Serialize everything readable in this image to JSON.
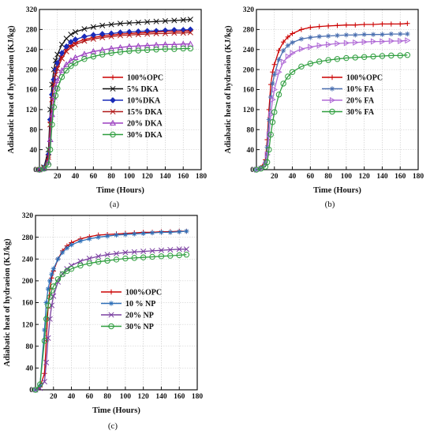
{
  "chart_data": [
    {
      "type": "line",
      "panel_label": "(a)",
      "xlabel": "Time (Hours)",
      "ylabel": "Adiabatic heat of hydraeion (KJ/kg)",
      "xlim": [
        0,
        180
      ],
      "ylim": [
        0,
        320
      ],
      "xticks": [
        20,
        40,
        60,
        80,
        100,
        120,
        140,
        160,
        180
      ],
      "yticks": [
        0,
        40,
        80,
        120,
        160,
        200,
        240,
        280,
        320
      ],
      "grid": true,
      "legend_position": "center-right",
      "x": [
        0,
        5,
        10,
        12,
        14,
        16,
        18,
        20,
        25,
        30,
        35,
        40,
        50,
        60,
        70,
        80,
        90,
        100,
        110,
        120,
        130,
        140,
        150,
        160,
        168
      ],
      "series": [
        {
          "name": "100%OPC",
          "color": "#cc0000",
          "marker": "plus",
          "values": [
            0,
            3,
            25,
            95,
            150,
            180,
            198,
            210,
            228,
            240,
            248,
            254,
            260,
            264,
            267,
            269,
            271,
            272,
            273,
            274,
            275,
            276,
            276,
            277,
            277
          ]
        },
        {
          "name": "5% DKA",
          "color": "#111111",
          "marker": "x",
          "values": [
            0,
            5,
            40,
            120,
            170,
            200,
            218,
            230,
            250,
            262,
            270,
            275,
            281,
            285,
            288,
            290,
            292,
            293,
            294,
            295,
            296,
            297,
            298,
            299,
            300
          ]
        },
        {
          "name": "10%DKA",
          "color": "#1a2bb8",
          "marker": "diamond",
          "values": [
            0,
            4,
            30,
            100,
            150,
            180,
            200,
            213,
            233,
            246,
            255,
            260,
            266,
            269,
            271,
            272,
            274,
            275,
            276,
            277,
            277,
            278,
            279,
            279,
            280
          ]
        },
        {
          "name": "15% DKA",
          "color": "#b01818",
          "marker": "x",
          "values": [
            0,
            3,
            25,
            90,
            140,
            170,
            190,
            202,
            222,
            236,
            244,
            250,
            257,
            261,
            264,
            266,
            268,
            269,
            270,
            271,
            272,
            272,
            273,
            273,
            274
          ]
        },
        {
          "name": "20% DKA",
          "color": "#9b3fc0",
          "marker": "triangle",
          "values": [
            0,
            2,
            15,
            60,
            110,
            145,
            165,
            178,
            198,
            210,
            218,
            224,
            231,
            236,
            239,
            242,
            244,
            246,
            247,
            248,
            249,
            250,
            250,
            251,
            251
          ]
        },
        {
          "name": "30% DKA",
          "color": "#2e9e3e",
          "marker": "circle",
          "values": [
            0,
            2,
            10,
            40,
            90,
            125,
            148,
            162,
            185,
            198,
            207,
            213,
            221,
            226,
            230,
            233,
            235,
            237,
            238,
            239,
            240,
            241,
            241,
            242,
            242
          ]
        }
      ]
    },
    {
      "type": "line",
      "panel_label": "(b)",
      "xlabel": "Time (Hours)",
      "ylabel": "Adiabatic heat of hydraeion (KJ/kg)",
      "xlim": [
        0,
        180
      ],
      "ylim": [
        0,
        320
      ],
      "xticks": [
        20,
        40,
        60,
        80,
        100,
        120,
        140,
        160,
        180
      ],
      "yticks": [
        0,
        40,
        80,
        120,
        160,
        200,
        240,
        280,
        320
      ],
      "grid": true,
      "legend_position": "center-right",
      "x": [
        0,
        5,
        10,
        12,
        14,
        16,
        18,
        20,
        25,
        30,
        35,
        40,
        50,
        60,
        70,
        80,
        90,
        100,
        110,
        120,
        130,
        140,
        150,
        160,
        168
      ],
      "series": [
        {
          "name": "100%OPC",
          "color": "#cc0000",
          "marker": "plus",
          "values": [
            0,
            4,
            20,
            60,
            120,
            170,
            195,
            210,
            238,
            255,
            265,
            272,
            280,
            284,
            286,
            287,
            288,
            289,
            289,
            290,
            290,
            291,
            291,
            291,
            292
          ]
        },
        {
          "name": "10% FA",
          "color": "#4a6fb0",
          "marker": "star",
          "values": [
            0,
            3,
            15,
            45,
            100,
            145,
            172,
            190,
            220,
            238,
            248,
            254,
            261,
            264,
            266,
            267,
            268,
            269,
            269,
            270,
            270,
            270,
            271,
            271,
            271
          ]
        },
        {
          "name": "20% FA",
          "color": "#b06ad6",
          "marker": "triangle-right",
          "values": [
            0,
            2,
            10,
            30,
            70,
            110,
            140,
            160,
            195,
            215,
            226,
            233,
            241,
            245,
            248,
            250,
            252,
            253,
            254,
            255,
            256,
            256,
            257,
            257,
            258
          ]
        },
        {
          "name": "30% FA",
          "color": "#2e9e3e",
          "marker": "circle",
          "values": [
            0,
            2,
            6,
            15,
            40,
            70,
            95,
            115,
            150,
            172,
            186,
            195,
            206,
            212,
            216,
            219,
            221,
            223,
            224,
            225,
            226,
            227,
            228,
            228,
            229
          ]
        }
      ]
    },
    {
      "type": "line",
      "panel_label": "(c)",
      "xlabel": "Time (Hours)",
      "ylabel": "Adiabatic heat of hydraeion (KJ/kg)",
      "xlim": [
        0,
        180
      ],
      "ylim": [
        0,
        320
      ],
      "xticks": [
        20,
        40,
        60,
        80,
        100,
        120,
        140,
        160,
        180
      ],
      "yticks": [
        0,
        40,
        80,
        120,
        160,
        200,
        240,
        280,
        320
      ],
      "grid": true,
      "legend_position": "center-right",
      "x": [
        0,
        5,
        10,
        12,
        14,
        16,
        18,
        20,
        25,
        30,
        35,
        40,
        50,
        60,
        70,
        80,
        90,
        100,
        110,
        120,
        130,
        140,
        150,
        160,
        168
      ],
      "series": [
        {
          "name": "100%OPC",
          "color": "#cc0000",
          "marker": "plus",
          "values": [
            0,
            5,
            30,
            90,
            150,
            185,
            205,
            218,
            240,
            255,
            264,
            270,
            277,
            281,
            284,
            285,
            286,
            287,
            288,
            289,
            289,
            290,
            290,
            291,
            291
          ]
        },
        {
          "name": "10 % NP",
          "color": "#2d6fb8",
          "marker": "star",
          "values": [
            0,
            8,
            110,
            160,
            185,
            200,
            212,
            222,
            240,
            252,
            260,
            266,
            273,
            277,
            280,
            282,
            284,
            285,
            286,
            287,
            288,
            289,
            289,
            290,
            291
          ]
        },
        {
          "name": "20% NP",
          "color": "#7a3fa0",
          "marker": "x",
          "values": [
            0,
            3,
            15,
            50,
            95,
            130,
            155,
            172,
            198,
            213,
            222,
            228,
            236,
            241,
            245,
            248,
            250,
            252,
            253,
            254,
            255,
            256,
            257,
            258,
            258
          ]
        },
        {
          "name": "30% NP",
          "color": "#2e9e3e",
          "marker": "circle",
          "values": [
            0,
            10,
            90,
            130,
            155,
            170,
            182,
            190,
            203,
            212,
            218,
            222,
            228,
            232,
            235,
            237,
            239,
            241,
            242,
            243,
            244,
            245,
            246,
            247,
            248
          ]
        }
      ]
    }
  ]
}
